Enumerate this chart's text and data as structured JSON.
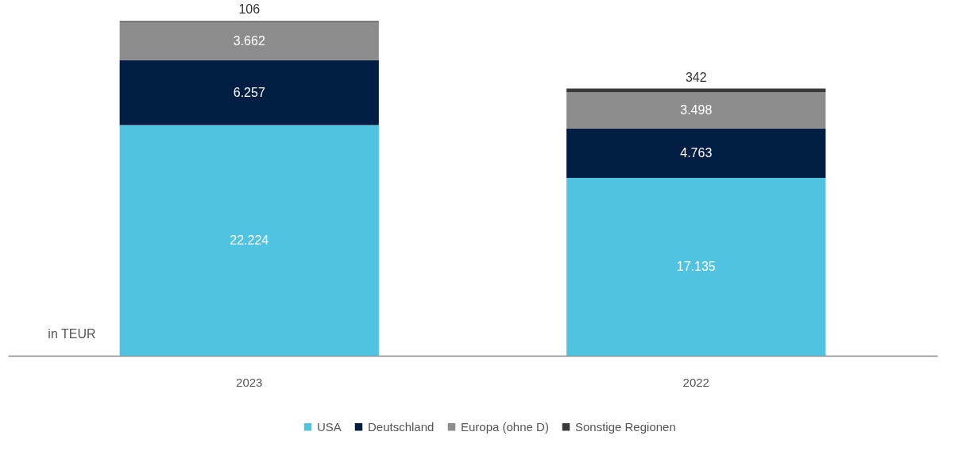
{
  "chart_data": {
    "type": "bar",
    "stacked": true,
    "categories": [
      "2023",
      "2022"
    ],
    "ylabel": "in TEUR",
    "tick_labels": "x",
    "grid": false,
    "legend": "bottom",
    "series": [
      {
        "name": "USA",
        "color": "#4fc3e0",
        "values": [
          22224,
          17135
        ],
        "value_labels": [
          "22.224",
          "17.135"
        ]
      },
      {
        "name": "Deutschland",
        "color": "#001e44",
        "values": [
          6257,
          4763
        ],
        "value_labels": [
          "6.257",
          "4.763"
        ]
      },
      {
        "name": "Europa (ohne D)",
        "color": "#8c8c8c",
        "values": [
          3662,
          3498
        ],
        "value_labels": [
          "3.662",
          "3.498"
        ]
      },
      {
        "name": "Sonstige Regionen",
        "color": "#3a3a3a",
        "values": [
          106,
          342
        ],
        "value_labels": [
          "106",
          "342"
        ]
      }
    ]
  }
}
